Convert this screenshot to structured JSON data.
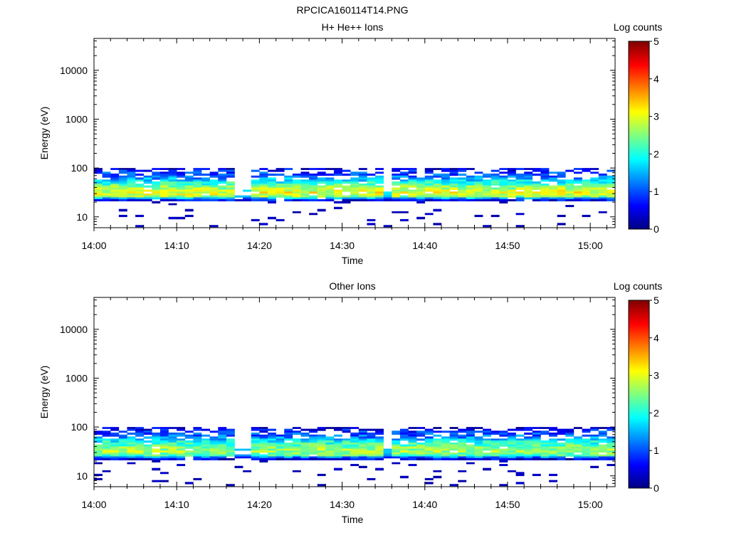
{
  "figure": {
    "title": "RPCICA160114T14.PNG"
  },
  "chart_data": [
    {
      "type": "heatmap",
      "title": "H+ He++ Ions",
      "xlabel": "Time",
      "ylabel": "Energy (eV)",
      "x_ticks": [
        "14:00",
        "14:10",
        "14:20",
        "14:30",
        "14:40",
        "14:50",
        "15:00"
      ],
      "xlim": [
        "14:00",
        "15:03"
      ],
      "y_scale": "log",
      "y_ticks": [
        10,
        100,
        1000,
        10000
      ],
      "y_tick_labels": [
        "10",
        "100",
        "1000",
        "10000"
      ],
      "ylim": [
        6,
        45000
      ],
      "colorbar": {
        "label": "Log counts",
        "range": [
          0,
          5
        ],
        "ticks": [
          "0",
          "1",
          "2",
          "3",
          "4",
          "5"
        ],
        "colormap": "jet"
      },
      "description_values": {
        "main_band_energy_eV": [
          22,
          100
        ],
        "peak_energy_eV": 33,
        "peak_log_counts": 3.0,
        "sparse_low_energy_counts_eV": [
          6,
          22
        ]
      },
      "data": {
        "energy_bins_eV": [
          100,
          92,
          84,
          77,
          70,
          64,
          58,
          53,
          48,
          44,
          40,
          36,
          33,
          30,
          27.5,
          25,
          23,
          21,
          19,
          17.5,
          16,
          14.5,
          13,
          12,
          11,
          10,
          9,
          8.2,
          7.5,
          6.8,
          6.2
        ],
        "time_start_min": 0,
        "time_step_min": 1,
        "n_steps": 63,
        "gaps_min": [
          17,
          18,
          35
        ],
        "profile_log_counts": [
          0.5,
          0.7,
          0.9,
          1.0,
          1.2,
          1.4,
          1.7,
          2.0,
          2.2,
          2.5,
          2.7,
          2.9,
          3.0,
          2.9,
          2.6,
          1.5,
          0.6
        ]
      }
    },
    {
      "type": "heatmap",
      "title": "Other Ions",
      "xlabel": "Time",
      "ylabel": "Energy (eV)",
      "x_ticks": [
        "14:00",
        "14:10",
        "14:20",
        "14:30",
        "14:40",
        "14:50",
        "15:00"
      ],
      "xlim": [
        "14:00",
        "15:03"
      ],
      "y_scale": "log",
      "y_ticks": [
        10,
        100,
        1000,
        10000
      ],
      "y_tick_labels": [
        "10",
        "100",
        "1000",
        "10000"
      ],
      "ylim": [
        6,
        45000
      ],
      "colorbar": {
        "label": "Log counts",
        "range": [
          0,
          5
        ],
        "ticks": [
          "0",
          "1",
          "2",
          "3",
          "4",
          "5"
        ],
        "colormap": "jet"
      },
      "description_values": {
        "main_band_energy_eV": [
          22,
          100
        ],
        "peak_energy_eV": 33,
        "peak_log_counts": 2.7,
        "sparse_low_energy_counts_eV": [
          6,
          22
        ]
      },
      "data": {
        "energy_bins_eV": [
          100,
          92,
          84,
          77,
          70,
          64,
          58,
          53,
          48,
          44,
          40,
          36,
          33,
          30,
          27.5,
          25,
          23,
          21,
          19,
          17.5,
          16,
          14.5,
          13,
          12,
          11,
          10,
          9,
          8.2,
          7.5,
          6.8,
          6.2
        ],
        "time_start_min": 0,
        "time_step_min": 1,
        "n_steps": 63,
        "gaps_min": [
          17,
          18,
          35
        ],
        "profile_log_counts": [
          0.4,
          0.6,
          0.8,
          1.0,
          1.1,
          1.3,
          1.6,
          1.9,
          2.1,
          2.3,
          2.5,
          2.6,
          2.7,
          2.5,
          2.2,
          1.2,
          0.5
        ]
      }
    }
  ]
}
